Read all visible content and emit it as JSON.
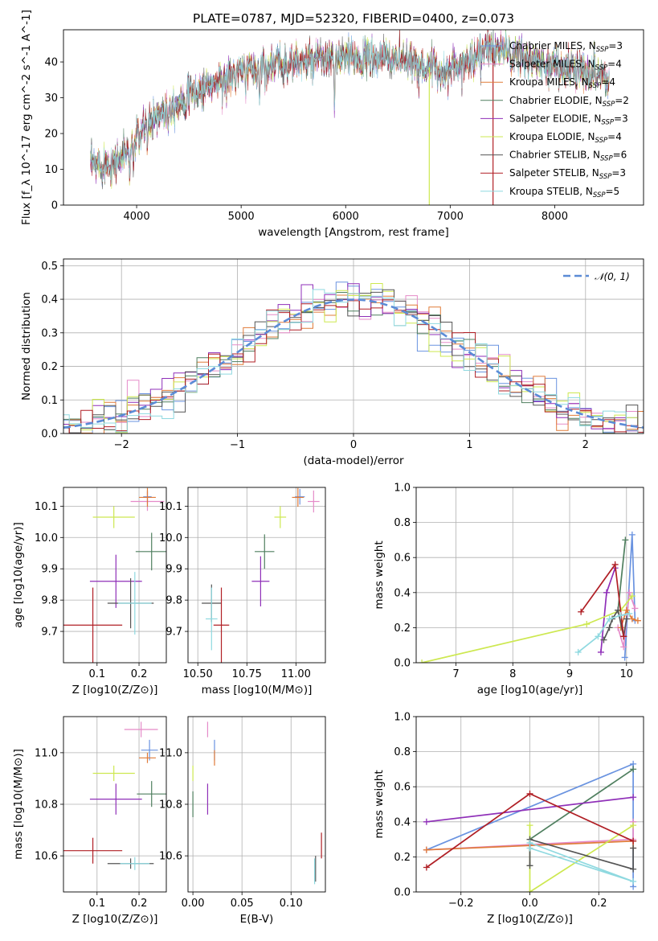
{
  "title": "PLATE=0787, MJD=52320, FIBERID=0400, z=0.073",
  "colors": [
    "#6a93e0",
    "#e58bc8",
    "#e07b39",
    "#4f7f5f",
    "#8f2fb8",
    "#cde850",
    "#545454",
    "#b01f25",
    "#8fd9e0"
  ],
  "chart_data": [
    {
      "id": "spectrum",
      "type": "line",
      "xlabel": "wavelength [Angstrom, rest frame]",
      "ylabel": "Flux [f_λ 10^-17 erg cm^-2 s^-1 A^-1]",
      "xlim": [
        3300,
        8850
      ],
      "ylim": [
        0,
        49
      ],
      "xticks": [
        4000,
        5000,
        6000,
        7000,
        8000
      ],
      "yticks": [
        0,
        10,
        20,
        30,
        40
      ],
      "legend_position": "top-right",
      "series": [
        {
          "name": "Chabrier MILES, N_SSP=3"
        },
        {
          "name": "Salpeter MILES, N_SSP=4"
        },
        {
          "name": "Kroupa MILES, N_SSP=4"
        },
        {
          "name": "Chabrier ELODIE, N_SSP=2"
        },
        {
          "name": "Salpeter ELODIE, N_SSP=3"
        },
        {
          "name": "Kroupa ELODIE, N_SSP=4"
        },
        {
          "name": "Chabrier STELIB, N_SSP=6"
        },
        {
          "name": "Salpeter STELIB, N_SSP=3"
        },
        {
          "name": "Kroupa STELIB, N_SSP=5"
        }
      ],
      "continuum": [
        [
          3560,
          11
        ],
        [
          3800,
          12
        ],
        [
          3950,
          16
        ],
        [
          4000,
          19
        ],
        [
          4200,
          25
        ],
        [
          4400,
          29
        ],
        [
          4600,
          32
        ],
        [
          4800,
          35
        ],
        [
          5000,
          37
        ],
        [
          5200,
          38.5
        ],
        [
          5400,
          39.5
        ],
        [
          5600,
          40
        ],
        [
          5800,
          40.5
        ],
        [
          6000,
          41
        ],
        [
          6200,
          41
        ],
        [
          6400,
          41
        ],
        [
          6600,
          40
        ],
        [
          6800,
          38.5
        ],
        [
          6900,
          37.5
        ],
        [
          7000,
          38
        ],
        [
          7200,
          41
        ],
        [
          7400,
          44
        ],
        [
          7600,
          42
        ],
        [
          7800,
          40
        ],
        [
          8000,
          39
        ],
        [
          8200,
          38
        ],
        [
          8400,
          37
        ],
        [
          8500,
          36
        ]
      ],
      "absorption_lines": [
        [
          3934,
          8
        ],
        [
          3969,
          6
        ],
        [
          4102,
          4
        ],
        [
          4300,
          4
        ],
        [
          4861,
          4
        ],
        [
          5175,
          8
        ],
        [
          5893,
          12
        ],
        [
          6563,
          4
        ],
        [
          8498,
          4
        ],
        [
          8542,
          4
        ]
      ],
      "spikes": [
        [
          6800,
          0
        ],
        [
          7410,
          0
        ]
      ]
    },
    {
      "id": "residuals",
      "type": "histogram",
      "xlabel": "(data-model)/error",
      "ylabel": "Normed distribution",
      "xlim": [
        -2.5,
        2.5
      ],
      "ylim": [
        0,
        0.52
      ],
      "xticks": [
        -2,
        -1,
        0,
        1,
        2
      ],
      "yticks": [
        0,
        0.1,
        0.2,
        0.3,
        0.4,
        0.5
      ],
      "bin_width": 0.1,
      "reference_curve": "N(0,1)",
      "legend_position": "top-right",
      "legend": [
        "𝒩(0, 1)"
      ]
    },
    {
      "id": "age_vs_Z",
      "type": "scatter",
      "xlabel": "Z [log10(Z/Z⊙)]",
      "ylabel": "age [log10(age/yr)]",
      "xlim": [
        0.02,
        0.265
      ],
      "ylim": [
        9.6,
        10.16
      ],
      "xticks": [
        0.1,
        0.2
      ],
      "yticks": [
        9.7,
        9.8,
        9.9,
        10.0,
        10.1
      ],
      "points": [
        {
          "x": 0.22,
          "y": 10.13,
          "xerr": 0.01,
          "yerr": 0.02
        },
        {
          "x": 0.22,
          "y": 10.115,
          "xerr": 0.04,
          "yerr": 0.03
        },
        {
          "x": 0.22,
          "y": 10.128,
          "xerr": 0.02,
          "yerr": 0.03
        },
        {
          "x": 0.23,
          "y": 9.955,
          "xerr": 0.038,
          "yerr": 0.06
        },
        {
          "x": 0.145,
          "y": 9.86,
          "xerr": 0.062,
          "yerr": 0.085
        },
        {
          "x": 0.14,
          "y": 10.065,
          "xerr": 0.05,
          "yerr": 0.035
        },
        {
          "x": 0.18,
          "y": 9.79,
          "xerr": 0.055,
          "yerr": 0.08
        },
        {
          "x": 0.09,
          "y": 9.72,
          "xerr": 0.07,
          "yerr": 0.12
        },
        {
          "x": 0.19,
          "y": 9.79,
          "xerr": 0.04,
          "yerr": 0.1
        }
      ]
    },
    {
      "id": "age_vs_mass",
      "type": "scatter",
      "xlabel": "mass [log10(M/M⊙)]",
      "ylabel": "",
      "xlim": [
        10.45,
        11.15
      ],
      "ylim": [
        9.6,
        10.16
      ],
      "xticks": [
        10.5,
        10.75,
        11.0
      ],
      "yticks": [
        9.7,
        9.8,
        9.9,
        10.0,
        10.1
      ],
      "points": [
        {
          "x": 11.02,
          "y": 10.13,
          "xerr": 0.025,
          "yerr": 0.025
        },
        {
          "x": 11.09,
          "y": 10.115,
          "xerr": 0.03,
          "yerr": 0.035
        },
        {
          "x": 11.01,
          "y": 10.128,
          "xerr": 0.03,
          "yerr": 0.03
        },
        {
          "x": 10.84,
          "y": 9.955,
          "xerr": 0.05,
          "yerr": 0.055
        },
        {
          "x": 10.82,
          "y": 9.86,
          "xerr": 0.045,
          "yerr": 0.08
        },
        {
          "x": 10.92,
          "y": 10.065,
          "xerr": 0.03,
          "yerr": 0.035
        },
        {
          "x": 10.57,
          "y": 9.79,
          "xerr": 0.05,
          "yerr": 0.06
        },
        {
          "x": 10.62,
          "y": 9.72,
          "xerr": 0.04,
          "yerr": 0.12
        },
        {
          "x": 10.57,
          "y": 9.74,
          "xerr": 0.03,
          "yerr": 0.1
        }
      ]
    },
    {
      "id": "massweight_vs_age",
      "type": "line",
      "xlabel": "age [log10(age/yr)]",
      "ylabel": "mass weight",
      "xlim": [
        6.3,
        10.3
      ],
      "ylim": [
        0,
        1.0
      ],
      "xticks": [
        7,
        8,
        9,
        10
      ],
      "yticks": [
        0.0,
        0.2,
        0.4,
        0.6,
        0.8,
        1.0
      ],
      "series": [
        {
          "points": [
            [
              9.97,
              0.03
            ],
            [
              10.1,
              0.73
            ],
            [
              10.15,
              0.24
            ]
          ]
        },
        {
          "points": [
            [
              9.85,
              0.2
            ],
            [
              9.95,
              0.09
            ],
            [
              10.05,
              0.4
            ],
            [
              10.15,
              0.31
            ]
          ]
        },
        {
          "points": [
            [
              9.9,
              0.2
            ],
            [
              10.0,
              0.3
            ],
            [
              10.1,
              0.25
            ],
            [
              10.2,
              0.24
            ]
          ]
        },
        {
          "points": [
            [
              9.85,
              0.3
            ],
            [
              9.98,
              0.7
            ]
          ]
        },
        {
          "points": [
            [
              9.55,
              0.06
            ],
            [
              9.65,
              0.4
            ],
            [
              9.8,
              0.54
            ]
          ]
        },
        {
          "points": [
            [
              6.4,
              0.0
            ],
            [
              9.3,
              0.22
            ],
            [
              9.9,
              0.3
            ],
            [
              10.1,
              0.38
            ]
          ]
        },
        {
          "points": [
            [
              9.6,
              0.13
            ],
            [
              9.7,
              0.2
            ],
            [
              9.75,
              0.25
            ],
            [
              9.85,
              0.3
            ],
            [
              9.95,
              0.15
            ],
            [
              10.0,
              0.25
            ]
          ]
        },
        {
          "points": [
            [
              9.2,
              0.29
            ],
            [
              9.8,
              0.56
            ],
            [
              9.95,
              0.15
            ]
          ]
        },
        {
          "points": [
            [
              9.15,
              0.06
            ],
            [
              9.5,
              0.15
            ],
            [
              9.7,
              0.25
            ],
            [
              9.9,
              0.27
            ],
            [
              10.05,
              0.28
            ]
          ]
        }
      ]
    },
    {
      "id": "mass_vs_Z",
      "type": "scatter",
      "xlabel": "Z [log10(Z/Z⊙)]",
      "ylabel": "mass [log10(M/M⊙)]",
      "xlim": [
        0.02,
        0.265
      ],
      "ylim": [
        10.46,
        11.14
      ],
      "xticks": [
        0.1,
        0.2
      ],
      "yticks": [
        10.6,
        10.8,
        11.0
      ],
      "points": [
        {
          "x": 0.225,
          "y": 11.01,
          "xerr": 0.02,
          "yerr": 0.04
        },
        {
          "x": 0.205,
          "y": 11.09,
          "xerr": 0.04,
          "yerr": 0.03
        },
        {
          "x": 0.22,
          "y": 10.98,
          "xerr": 0.02,
          "yerr": 0.02
        },
        {
          "x": 0.23,
          "y": 10.84,
          "xerr": 0.035,
          "yerr": 0.05
        },
        {
          "x": 0.145,
          "y": 10.82,
          "xerr": 0.062,
          "yerr": 0.06
        },
        {
          "x": 0.14,
          "y": 10.92,
          "xerr": 0.05,
          "yerr": 0.03
        },
        {
          "x": 0.18,
          "y": 10.57,
          "xerr": 0.055,
          "yerr": 0.02
        },
        {
          "x": 0.09,
          "y": 10.62,
          "xerr": 0.07,
          "yerr": 0.05
        },
        {
          "x": 0.19,
          "y": 10.57,
          "xerr": 0.035,
          "yerr": 0.025
        }
      ]
    },
    {
      "id": "mass_vs_EBV",
      "type": "scatter",
      "xlabel": "E(B-V)",
      "ylabel": "",
      "xlim": [
        -0.005,
        0.135
      ],
      "ylim": [
        10.46,
        11.14
      ],
      "xticks": [
        0.0,
        0.05,
        0.1
      ],
      "yticks": [
        10.6,
        10.8,
        11.0
      ],
      "points": [
        {
          "x": 0.022,
          "y": 11.01,
          "xerr": 0,
          "yerr": 0.04
        },
        {
          "x": 0.015,
          "y": 11.09,
          "xerr": 0,
          "yerr": 0.03
        },
        {
          "x": 0.022,
          "y": 10.98,
          "xerr": 0,
          "yerr": 0.03
        },
        {
          "x": 0.0,
          "y": 10.8,
          "xerr": 0,
          "yerr": 0.05
        },
        {
          "x": 0.015,
          "y": 10.82,
          "xerr": 0,
          "yerr": 0.06
        },
        {
          "x": 0.0,
          "y": 10.92,
          "xerr": 0,
          "yerr": 0.03
        },
        {
          "x": 0.125,
          "y": 10.55,
          "xerr": 0,
          "yerr": 0.05
        },
        {
          "x": 0.131,
          "y": 10.64,
          "xerr": 0,
          "yerr": 0.05
        },
        {
          "x": 0.124,
          "y": 10.54,
          "xerr": 0,
          "yerr": 0.05
        }
      ]
    },
    {
      "id": "massweight_vs_Z",
      "type": "line",
      "xlabel": "Z [log10(Z/Z⊙)]",
      "ylabel": "mass weight",
      "xlim": [
        -0.33,
        0.33
      ],
      "ylim": [
        0,
        1.0
      ],
      "xticks": [
        -0.2,
        0.0,
        0.2
      ],
      "yticks": [
        0.0,
        0.2,
        0.4,
        0.6,
        0.8,
        1.0
      ],
      "series": [
        {
          "points": [
            [
              -0.3,
              0.24
            ],
            [
              0.3,
              0.73
            ],
            [
              0.3,
              0.03
            ]
          ]
        },
        {
          "points": [
            [
              -0.3,
              0.24
            ],
            [
              0.3,
              0.3
            ],
            [
              0.3,
              0.4
            ]
          ]
        },
        {
          "points": [
            [
              -0.3,
              0.24
            ],
            [
              0.3,
              0.29
            ],
            [
              0.3,
              0.25
            ]
          ]
        },
        {
          "points": [
            [
              0.0,
              0.3
            ],
            [
              0.3,
              0.7
            ]
          ]
        },
        {
          "points": [
            [
              -0.3,
              0.4
            ],
            [
              0.3,
              0.54
            ]
          ]
        },
        {
          "points": [
            [
              0.0,
              0.38
            ],
            [
              0.0,
              0.0
            ],
            [
              0.3,
              0.38
            ]
          ]
        },
        {
          "points": [
            [
              0.0,
              0.15
            ],
            [
              0.0,
              0.3
            ],
            [
              0.3,
              0.13
            ],
            [
              0.3,
              0.25
            ]
          ]
        },
        {
          "points": [
            [
              -0.3,
              0.14
            ],
            [
              0.0,
              0.56
            ],
            [
              0.3,
              0.29
            ]
          ]
        },
        {
          "points": [
            [
              0.0,
              0.25
            ],
            [
              0.3,
              0.06
            ],
            [
              0.0,
              0.28
            ]
          ]
        }
      ]
    }
  ]
}
